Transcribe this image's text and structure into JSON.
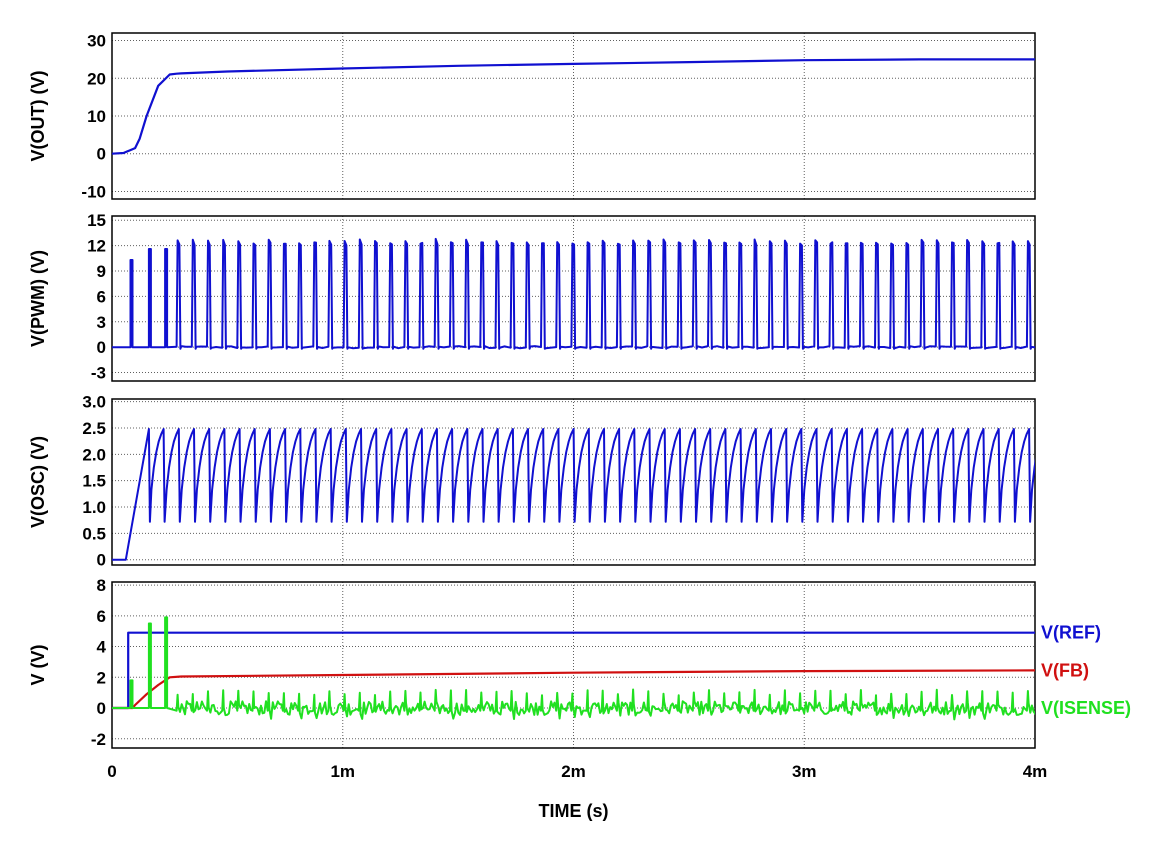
{
  "chart_data": {
    "type": "line",
    "xlabel": "TIME  (s)",
    "x_range": [
      0,
      0.004
    ],
    "x_ticks": [
      {
        "v": 0,
        "label": "0"
      },
      {
        "v": 0.001,
        "label": "1m"
      },
      {
        "v": 0.002,
        "label": "2m"
      },
      {
        "v": 0.003,
        "label": "3m"
      },
      {
        "v": 0.004,
        "label": "4m"
      }
    ],
    "grid": true,
    "colors": {
      "blue": "#1010d0",
      "red": "#d01010",
      "green": "#20e020",
      "grid": "#606060"
    },
    "panels": [
      {
        "ylabel": "V(OUT)  (V)",
        "ylim": [
          -12,
          32
        ],
        "yticks": [
          -10,
          0,
          10,
          20,
          30
        ],
        "ytick_labels": [
          "-10",
          "0",
          "10",
          "20",
          "30"
        ],
        "series": [
          {
            "color": "#1010d0",
            "x": [
              0,
              5e-05,
              0.0001,
              0.00012,
              0.00015,
              0.0002,
              0.00025,
              0.00028,
              0.0003,
              0.0005,
              0.001,
              0.0015,
              0.002,
              0.0025,
              0.003,
              0.0035,
              0.004
            ],
            "y": [
              0,
              0.2,
              1.5,
              4,
              10,
              18,
              21,
              21.2,
              21.3,
              21.8,
              22.6,
              23.3,
              23.8,
              24.3,
              24.8,
              25,
              25
            ]
          }
        ]
      },
      {
        "ylabel": "V(PWM)  (V)",
        "ylim": [
          -4,
          15.5
        ],
        "yticks": [
          -3,
          0,
          3,
          6,
          9,
          12,
          15
        ],
        "ytick_labels": [
          "-3",
          "0",
          "3",
          "6",
          "9",
          "12",
          "15"
        ],
        "pulse_train": {
          "start": 0.00028,
          "period": 6.58e-05,
          "width": 1.2e-05,
          "high": 12.8,
          "low": 0,
          "noise": 0.25
        },
        "startup_pulses": [
          {
            "t": 8e-05,
            "high": 10.3
          },
          {
            "t": 0.00016,
            "high": 11.6
          },
          {
            "t": 0.00023,
            "high": 11.6
          }
        ],
        "series": [
          {
            "color": "#1010d0"
          }
        ]
      },
      {
        "ylabel": "V(OSC)  (V)",
        "ylim": [
          -0.1,
          3.05
        ],
        "yticks": [
          0,
          0.5,
          1.0,
          1.5,
          2.0,
          2.5,
          3.0
        ],
        "ytick_labels": [
          "0",
          "0.5",
          "1.0",
          "1.5",
          "2.0",
          "2.5",
          "3.0"
        ],
        "sawtooth": {
          "start": 0.00016,
          "period": 6.58e-05,
          "low": 0.72,
          "high": 2.48
        },
        "series": [
          {
            "color": "#1010d0"
          }
        ]
      },
      {
        "ylabel": "V  (V)",
        "ylim": [
          -2.6,
          8.2
        ],
        "yticks": [
          -2,
          0,
          2,
          4,
          6,
          8
        ],
        "ytick_labels": [
          "-2",
          "0",
          "2",
          "4",
          "6",
          "8"
        ],
        "series": [
          {
            "name": "V(REF)",
            "color": "#1010d0",
            "x": [
              0,
              7e-05,
              7e-05,
              0.004
            ],
            "y": [
              0,
              0,
              4.9,
              4.9
            ]
          },
          {
            "name": "V(FB)",
            "color": "#d01010",
            "x": [
              0,
              9e-05,
              0.0001,
              0.00015,
              0.0002,
              0.00025,
              0.0003,
              0.001,
              0.002,
              0.003,
              0.004
            ],
            "y": [
              0,
              0,
              0.2,
              0.9,
              1.5,
              2.0,
              2.05,
              2.15,
              2.3,
              2.4,
              2.45
            ]
          },
          {
            "name": "V(ISENSE)",
            "color": "#20e020",
            "spikes": [
              {
                "t": 8e-05,
                "v": 1.8
              },
              {
                "t": 0.00016,
                "v": 5.5
              },
              {
                "t": 0.00023,
                "v": 5.9
              }
            ],
            "ripple_start": 0.00028,
            "ripple_period": 6.58e-05,
            "ripple_peak": 1.1,
            "ripple_low": -0.35
          }
        ]
      }
    ]
  }
}
